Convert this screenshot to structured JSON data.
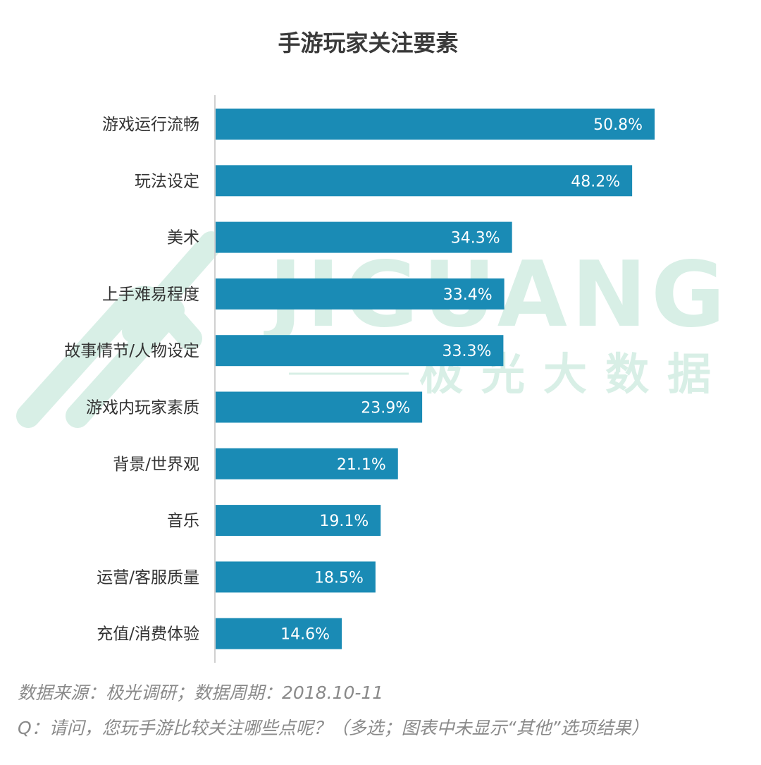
{
  "chart_data": {
    "type": "bar",
    "orientation": "horizontal",
    "title": "手游玩家关注要素",
    "categories": [
      "游戏运行流畅",
      "玩法设定",
      "美术",
      "上手难易程度",
      "故事情节/人物设定",
      "游戏内玩家素质",
      "背景/世界观",
      "音乐",
      "运营/客服质量",
      "充值/消费体验"
    ],
    "values": [
      50.8,
      48.2,
      34.3,
      33.4,
      33.3,
      23.9,
      21.1,
      19.1,
      18.5,
      14.6
    ],
    "value_labels": [
      "50.8%",
      "48.2%",
      "34.3%",
      "33.4%",
      "33.3%",
      "23.9%",
      "21.1%",
      "19.1%",
      "18.5%",
      "14.6%"
    ],
    "unit": "%",
    "xlim": [
      0,
      53
    ],
    "grid": false,
    "legend": "none",
    "bar_color": "#1a8bb5",
    "axis_color": "#d0d0d0"
  },
  "watermark": {
    "brand": "JIGUANG",
    "subtitle": "极光大数据",
    "color": "#d8efe6"
  },
  "footnotes": {
    "source": "数据来源：极光调研；数据周期：2018.10-11",
    "question": "Q：请问，您玩手游比较关注哪些点呢？（多选；图表中未显示“其他”选项结果）"
  }
}
